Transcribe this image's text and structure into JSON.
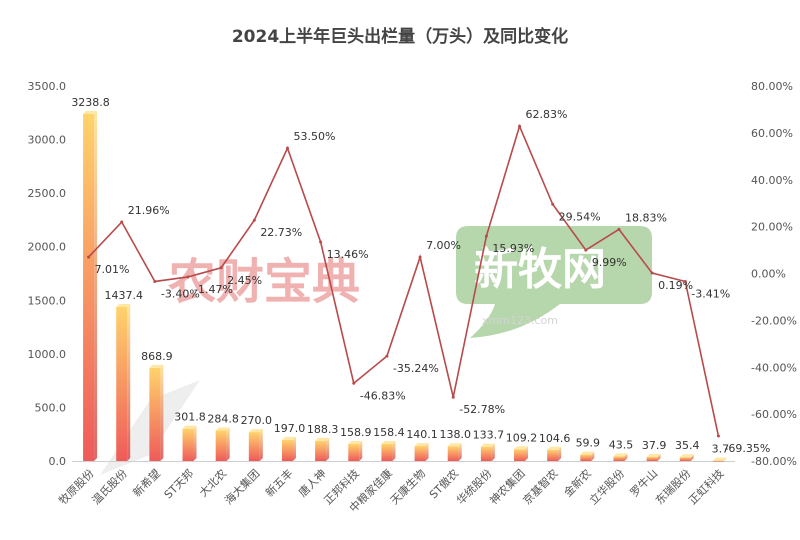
{
  "chart_data": {
    "type": "bar",
    "title": "2024上半年巨头出栏量（万头）及同比变化",
    "categories": [
      "牧原股份",
      "温氏股份",
      "新希望",
      "ST天邦",
      "大北农",
      "海大集团",
      "新五丰",
      "唐人神",
      "正邦科技",
      "中粮家佳康",
      "天康生物",
      "ST傲农",
      "华统股份",
      "神农集团",
      "京基智农",
      "金新农",
      "立华股份",
      "罗牛山",
      "东瑞股份",
      "正虹科技"
    ],
    "series": [
      {
        "type": "bar",
        "values": [
          3238.8,
          1437.4,
          868.9,
          301.8,
          284.8,
          270.0,
          197.0,
          188.3,
          158.9,
          158.4,
          140.1,
          138.0,
          133.7,
          109.2,
          104.6,
          59.9,
          43.5,
          37.9,
          35.4,
          3.7
        ],
        "labels": [
          "3238.8",
          "1437.4",
          "868.9",
          "301.8",
          "284.8",
          "270.0",
          "197.0",
          "188.3",
          "158.9",
          "158.4",
          "140.1",
          "138.0",
          "133.7",
          "109.2",
          "104.6",
          "59.9",
          "43.5",
          "37.9",
          "35.4",
          "3.7"
        ]
      },
      {
        "type": "line",
        "axis": "right",
        "values": [
          7.01,
          21.96,
          -3.4,
          -1.47,
          2.45,
          22.73,
          53.5,
          13.46,
          -46.83,
          -35.24,
          7.0,
          -52.78,
          15.93,
          62.83,
          29.54,
          9.99,
          18.83,
          0.19,
          -3.41,
          -69.35
        ],
        "labels": [
          "7.01%",
          "21.96%",
          "-3.40%",
          "-1.47%",
          "2.45%",
          "22.73%",
          "53.50%",
          "13.46%",
          "-46.83%",
          "-35.24%",
          "7.00%",
          "-52.78%",
          "15.93%",
          "62.83%",
          "29.54%",
          "9.99%",
          "18.83%",
          "0.19%",
          "-3.41%",
          "-69.35%"
        ]
      }
    ],
    "left_axis": {
      "ylim": [
        0,
        3500
      ],
      "ticks": [
        "0.0",
        "500.0",
        "1000.0",
        "1500.0",
        "2000.0",
        "2500.0",
        "3000.0",
        "3500.0"
      ]
    },
    "right_axis": {
      "ylim": [
        -80,
        80
      ],
      "ticks": [
        "-80.00%",
        "-60.00%",
        "-40.00%",
        "-20.00%",
        "0.00%",
        "20.00%",
        "40.00%",
        "60.00%",
        "80.00%"
      ]
    },
    "grid": false,
    "colors": {
      "bar_top": "#ffd36b",
      "bar_bottom": "#ef5a5a",
      "line": "#b84a4a"
    }
  },
  "watermarks": {
    "left": "农财宝典",
    "right": "新牧网",
    "right_sub": "xmm123.com"
  }
}
